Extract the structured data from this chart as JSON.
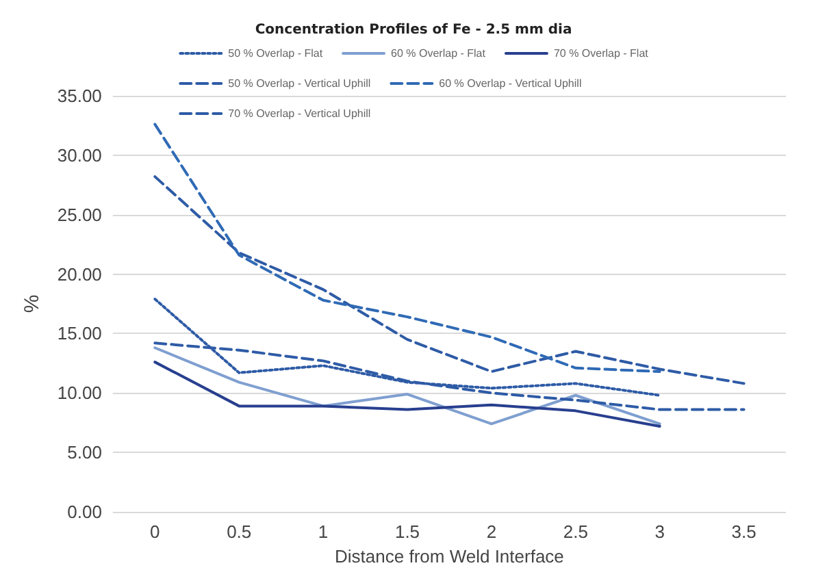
{
  "chart_data": {
    "type": "line",
    "title": "Concentration Profiles of Fe - 2.5 mm dia",
    "xlabel": "Distance from Weld Interface",
    "ylabel": "%",
    "categories": [
      "0",
      "0.5",
      "1",
      "1.5",
      "2",
      "2.5",
      "3",
      "3.5"
    ],
    "series": [
      {
        "name": "50 % Overlap - Flat",
        "color": "#2e5ba6",
        "line_style": "dotted",
        "values": [
          17.9,
          11.7,
          12.3,
          10.9,
          10.4,
          10.8,
          9.8,
          null
        ]
      },
      {
        "name": "60 % Overlap - Flat",
        "color": "#7f9fd0",
        "line_style": "solid",
        "values": [
          13.8,
          10.9,
          8.9,
          9.9,
          7.4,
          9.8,
          7.4,
          null
        ]
      },
      {
        "name": "70 % Overlap - Flat",
        "color": "#283f8f",
        "line_style": "solid",
        "values": [
          12.6,
          8.9,
          8.9,
          8.6,
          9.0,
          8.5,
          7.2,
          null
        ]
      },
      {
        "name": "50 % Overlap - Vertical Uphill",
        "color": "#2e5ba6",
        "line_style": "dashed",
        "values": [
          28.2,
          21.8,
          18.7,
          14.5,
          11.8,
          13.5,
          12.0,
          10.8
        ]
      },
      {
        "name": "60 % Overlap - Vertical Uphill",
        "color": "#2f6ab5",
        "line_style": "dashed",
        "values": [
          32.6,
          21.6,
          17.8,
          16.4,
          14.7,
          12.1,
          11.8,
          null
        ]
      },
      {
        "name": "70 % Overlap - Vertical Uphill",
        "color": "#2e5ba6",
        "line_style": "dashed",
        "values": [
          14.2,
          13.6,
          12.7,
          11.0,
          10.0,
          9.4,
          8.6,
          8.6
        ]
      }
    ],
    "ylim": [
      0,
      35
    ],
    "yticks": [
      {
        "value": 0,
        "label": "0.00"
      },
      {
        "value": 5,
        "label": "5.00"
      },
      {
        "value": 10,
        "label": "10.00"
      },
      {
        "value": 15,
        "label": "15.00"
      },
      {
        "value": 20,
        "label": "20.00"
      },
      {
        "value": 25,
        "label": "25.00"
      },
      {
        "value": 30,
        "label": "30.00"
      },
      {
        "value": 35,
        "label": "35.00"
      }
    ],
    "grid": "y",
    "legend": "top",
    "marker": "none"
  }
}
